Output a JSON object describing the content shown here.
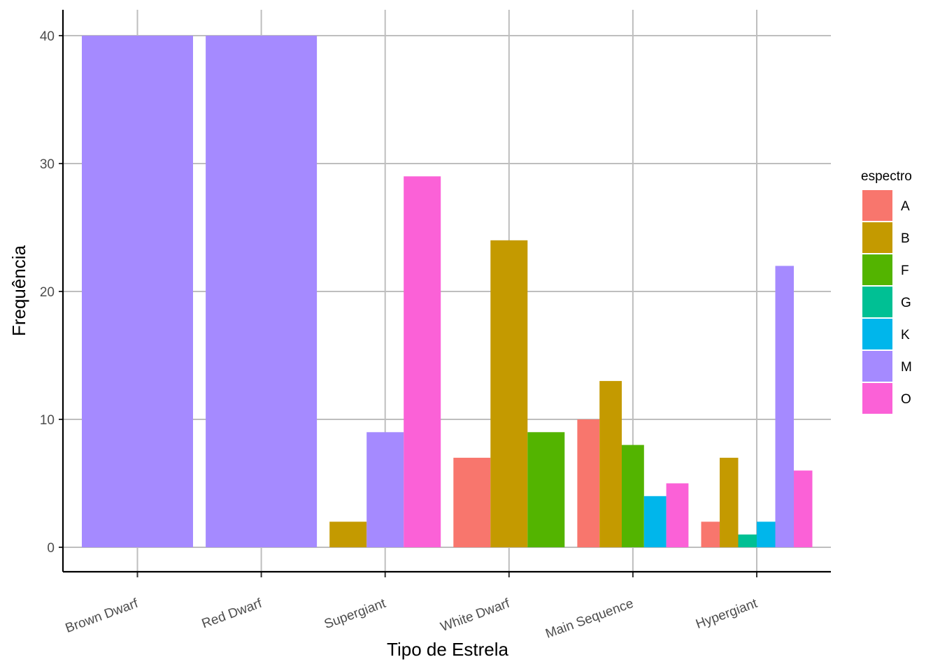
{
  "chart_data": {
    "type": "bar",
    "xlabel": "Tipo de Estrela",
    "ylabel": "Frequência",
    "ylim": [
      -2,
      42
    ],
    "yticks": [
      0,
      10,
      20,
      30,
      40
    ],
    "categories": [
      "Brown Dwarf",
      "Red Dwarf",
      "Supergiant",
      "White Dwarf",
      "Main Sequence",
      "Hypergiant"
    ],
    "legend": {
      "title": "espectro",
      "placement": "right",
      "entries": [
        {
          "name": "A",
          "color": "#F8766D"
        },
        {
          "name": "B",
          "color": "#C49A00"
        },
        {
          "name": "F",
          "color": "#53B400"
        },
        {
          "name": "G",
          "color": "#00C094"
        },
        {
          "name": "K",
          "color": "#00B6EB"
        },
        {
          "name": "M",
          "color": "#A58AFF"
        },
        {
          "name": "O",
          "color": "#FB61D7"
        }
      ]
    },
    "groups": [
      {
        "category": "Brown Dwarf",
        "bars": [
          {
            "spectrum": "M",
            "value": 40
          }
        ]
      },
      {
        "category": "Red Dwarf",
        "bars": [
          {
            "spectrum": "M",
            "value": 40
          }
        ]
      },
      {
        "category": "Supergiant",
        "bars": [
          {
            "spectrum": "B",
            "value": 2
          },
          {
            "spectrum": "M",
            "value": 9
          },
          {
            "spectrum": "O",
            "value": 29
          }
        ]
      },
      {
        "category": "White Dwarf",
        "bars": [
          {
            "spectrum": "A",
            "value": 7
          },
          {
            "spectrum": "B",
            "value": 24
          },
          {
            "spectrum": "F",
            "value": 9
          }
        ]
      },
      {
        "category": "Main Sequence",
        "bars": [
          {
            "spectrum": "A",
            "value": 10
          },
          {
            "spectrum": "B",
            "value": 13
          },
          {
            "spectrum": "F",
            "value": 8
          },
          {
            "spectrum": "K",
            "value": 4
          },
          {
            "spectrum": "O",
            "value": 5
          }
        ]
      },
      {
        "category": "Hypergiant",
        "bars": [
          {
            "spectrum": "A",
            "value": 2
          },
          {
            "spectrum": "B",
            "value": 7
          },
          {
            "spectrum": "G",
            "value": 1
          },
          {
            "spectrum": "K",
            "value": 2
          },
          {
            "spectrum": "M",
            "value": 22
          },
          {
            "spectrum": "O",
            "value": 6
          }
        ]
      }
    ],
    "grid": true
  }
}
